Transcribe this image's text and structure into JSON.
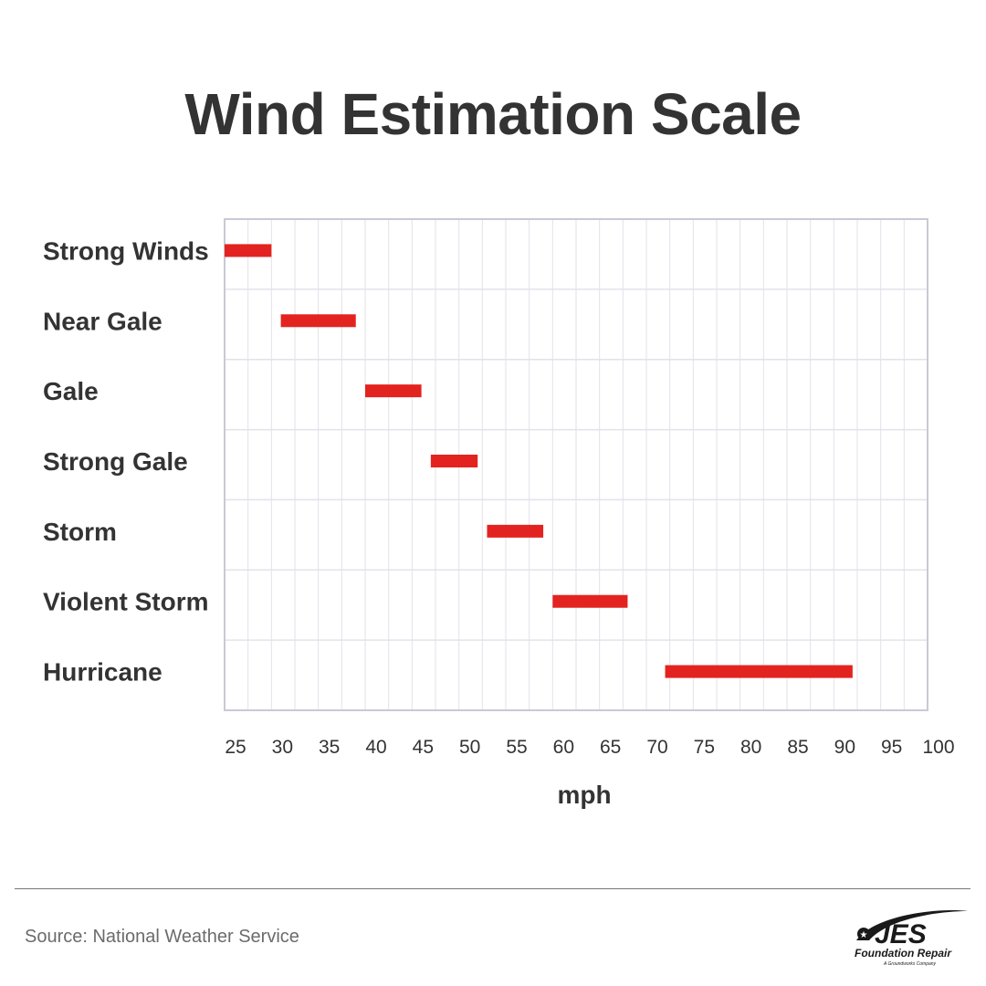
{
  "title": "Wind Estimation Scale",
  "source": "Source: National Weather Service",
  "logo": {
    "main_text": "JES",
    "sub_text": "Foundation Repair",
    "tagline": "A Groundworks Company"
  },
  "colors": {
    "bar": "#e3231f",
    "grid": "#e2e2ea",
    "frame": "#c9c9d6",
    "text": "#333333"
  },
  "chart_data": {
    "type": "bar",
    "orientation": "horizontal-range",
    "title": "Wind Estimation Scale",
    "xlabel": "mph",
    "ylabel": "",
    "xlim": [
      25,
      100
    ],
    "x_ticks": [
      25,
      30,
      35,
      40,
      45,
      50,
      55,
      60,
      65,
      70,
      75,
      80,
      85,
      90,
      95,
      100
    ],
    "categories": [
      "Strong Winds",
      "Near Gale",
      "Gale",
      "Strong Gale",
      "Storm",
      "Violent Storm",
      "Hurricane"
    ],
    "ranges": [
      [
        25,
        30
      ],
      [
        31,
        39
      ],
      [
        40,
        46
      ],
      [
        47,
        52
      ],
      [
        53,
        59
      ],
      [
        60,
        68
      ],
      [
        72,
        92
      ]
    ],
    "grid": true,
    "legend": "none"
  }
}
